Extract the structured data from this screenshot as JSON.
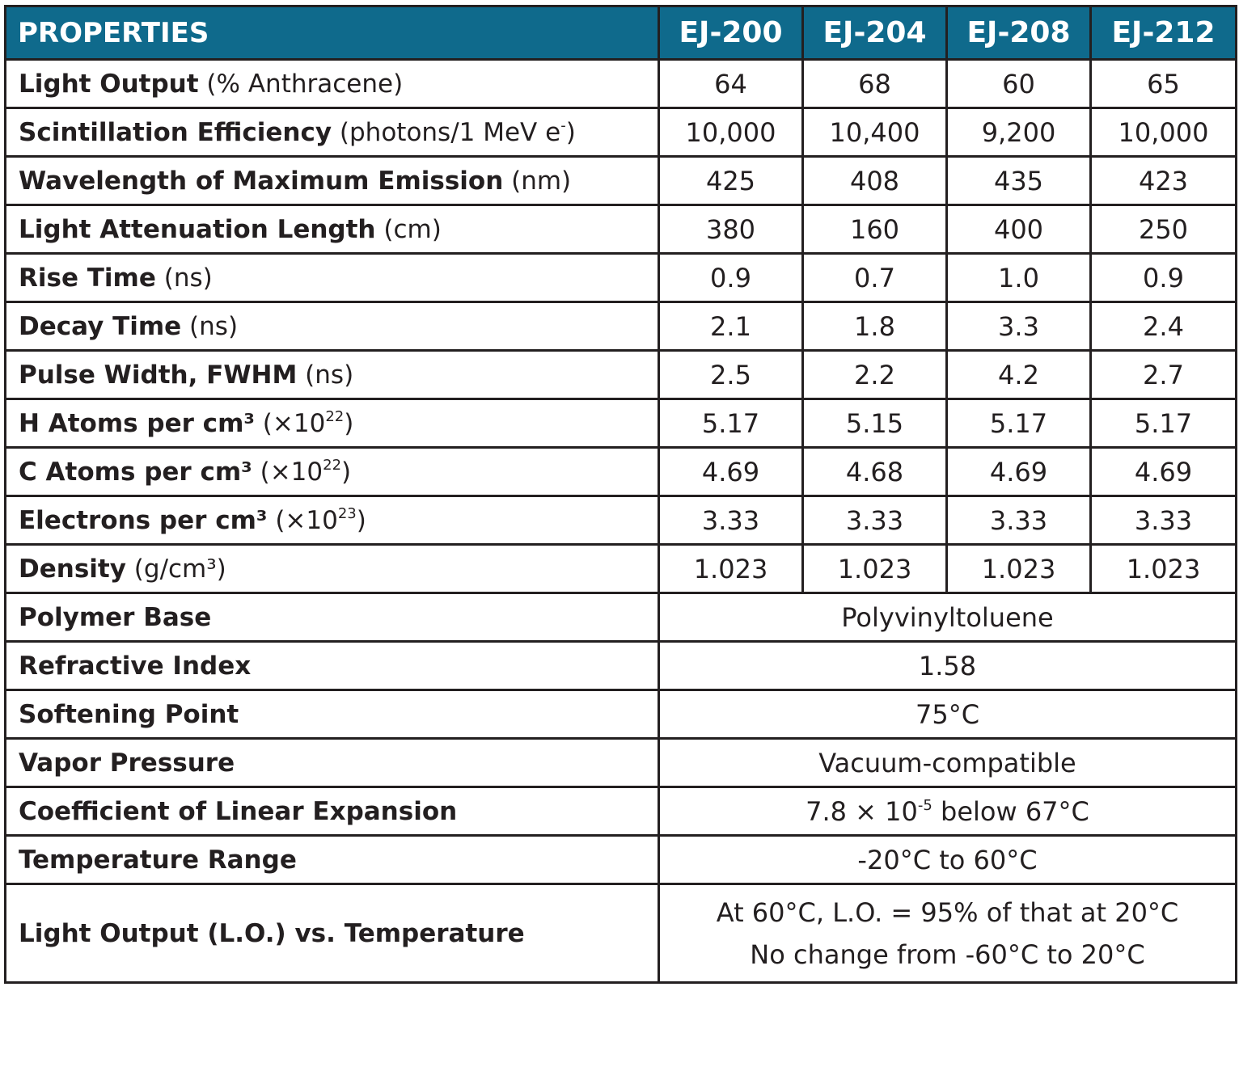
{
  "header": {
    "properties": "PROPERTIES",
    "products": [
      "EJ-200",
      "EJ-204",
      "EJ-208",
      "EJ-212"
    ]
  },
  "rows": [
    {
      "bold": "Light Output",
      "unit": " (% Anthracene)",
      "values": [
        "64",
        "68",
        "60",
        "65"
      ]
    },
    {
      "bold": "Scintillation Efficiency",
      "unit": " (photons/1 MeV e",
      "sup": "-",
      "unit_after": ")",
      "values": [
        "10,000",
        "10,400",
        "9,200",
        "10,000"
      ]
    },
    {
      "bold": "Wavelength of Maximum Emission",
      "unit": " (nm)",
      "values": [
        "425",
        "408",
        "435",
        "423"
      ]
    },
    {
      "bold": "Light Attenuation Length",
      "unit": " (cm)",
      "values": [
        "380",
        "160",
        "400",
        "250"
      ]
    },
    {
      "bold": "Rise Time",
      "unit": " (ns)",
      "values": [
        "0.9",
        "0.7",
        "1.0",
        "0.9"
      ]
    },
    {
      "bold": "Decay Time",
      "unit": " (ns)",
      "values": [
        "2.1",
        "1.8",
        "3.3",
        "2.4"
      ]
    },
    {
      "bold": "Pulse Width, FWHM",
      "unit": " (ns)",
      "values": [
        "2.5",
        "2.2",
        "4.2",
        "2.7"
      ]
    },
    {
      "bold": "H Atoms per cm³",
      "unit": " (×10",
      "sup": "22",
      "unit_after": ")",
      "values": [
        "5.17",
        "5.15",
        "5.17",
        "5.17"
      ]
    },
    {
      "bold": "C Atoms per cm³",
      "unit": " (×10",
      "sup": "22",
      "unit_after": ")",
      "values": [
        "4.69",
        "4.68",
        "4.69",
        "4.69"
      ]
    },
    {
      "bold": "Electrons per cm³",
      "unit": " (×10",
      "sup": "23",
      "unit_after": ")",
      "values": [
        "3.33",
        "3.33",
        "3.33",
        "3.33"
      ]
    },
    {
      "bold": "Density",
      "unit": " (g/cm³)",
      "values": [
        "1.023",
        "1.023",
        "1.023",
        "1.023"
      ]
    }
  ],
  "common_rows": [
    {
      "label": "Polymer Base",
      "value": "Polyvinyltoluene"
    },
    {
      "label": "Refractive Index",
      "value": "1.58"
    },
    {
      "label": "Softening Point",
      "value": "75°C"
    },
    {
      "label": "Vapor Pressure",
      "value": "Vacuum-compatible"
    },
    {
      "label": "Coefficient of Linear Expansion",
      "value": "7.8 × 10",
      "sup": "-5",
      "value_after": " below 67°C"
    },
    {
      "label": "Temperature Range",
      "value": "-20°C to 60°C"
    },
    {
      "label": "Light Output (L.O.) vs. Temperature",
      "lines": [
        "At 60°C, L.O. = 95% of that at 20°C",
        "No change from -60°C to 20°C"
      ]
    }
  ]
}
